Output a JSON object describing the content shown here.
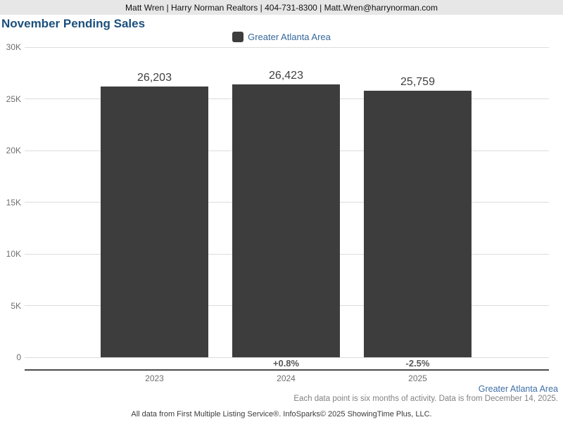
{
  "header": {
    "contact_line": "Matt Wren | Harry Norman Realtors | 404-731-8300 | Matt.Wren@harrynorman.com"
  },
  "title": "November Pending Sales",
  "legend": {
    "label": "Greater Atlanta Area",
    "swatch_color": "#3d3d3d",
    "label_color": "#35689a"
  },
  "colors": {
    "title": "#1b4f7c",
    "bar": "#3d3d3d",
    "gridline": "#dcdcdc",
    "axis_line": "#4a4a4a",
    "blue_text": "#3f6fa5"
  },
  "chart_data": {
    "type": "bar",
    "title": "November Pending Sales",
    "series_name": "Greater Atlanta Area",
    "categories": [
      "2023",
      "2024",
      "2025"
    ],
    "values": [
      26203,
      26423,
      25759
    ],
    "value_labels": [
      "26,203",
      "26,423",
      "25,759"
    ],
    "pct_change_labels": [
      "",
      "+0.8%",
      "-2.5%"
    ],
    "xlabel": "",
    "ylabel": "",
    "ylim": [
      0,
      30000
    ],
    "ytick_values": [
      30000,
      25000,
      20000,
      15000,
      10000,
      5000,
      0
    ],
    "ytick_labels": [
      "30K",
      "25K",
      "20K",
      "15K",
      "10K",
      "5K",
      "0"
    ],
    "grid": "horizontal",
    "legend_position": "top-center",
    "bar_color": "#3d3d3d"
  },
  "footer": {
    "area_label": "Greater Atlanta Area",
    "data_note": "Each data point is six months of activity. Data is from December 14, 2025.",
    "attribution": "All data from First Multiple Listing Service®. InfoSparks© 2025 ShowingTime Plus, LLC."
  }
}
